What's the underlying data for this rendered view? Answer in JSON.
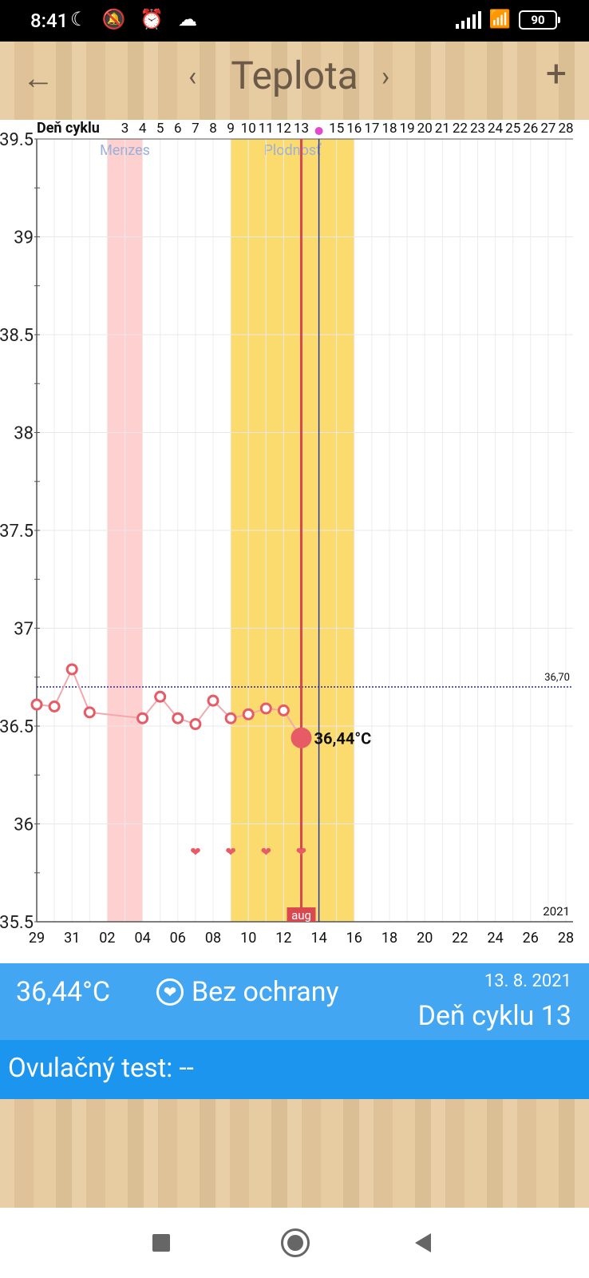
{
  "status": {
    "time": "8:41",
    "battery": "90"
  },
  "appbar": {
    "title": "Teplota",
    "back_icon": "←",
    "prev_icon": "‹",
    "next_icon": "›",
    "add_icon": "+"
  },
  "chart_data": {
    "type": "line",
    "header_label": "Deň cyklu",
    "cycle_days": [
      "3",
      "4",
      "5",
      "6",
      "7",
      "8",
      "9",
      "10",
      "11",
      "12",
      "13",
      "",
      "15",
      "16",
      "17",
      "18",
      "19",
      "20",
      "21",
      "22",
      "23",
      "24",
      "25",
      "26",
      "27",
      "28"
    ],
    "y_ticks": [
      "39.5",
      "39",
      "38.5",
      "38",
      "37.5",
      "37",
      "36.5",
      "36",
      "35.5"
    ],
    "ylim": [
      35.5,
      39.5
    ],
    "x_ticks": [
      "29",
      "31",
      "02",
      "04",
      "06",
      "08",
      "10",
      "12",
      "14",
      "16",
      "18",
      "20",
      "22",
      "24",
      "26",
      "28"
    ],
    "year": "2021",
    "month_label": "aug",
    "threshold": {
      "label": "36,70",
      "value": 36.7
    },
    "bands": [
      {
        "label": "Menzes",
        "from_day": 2,
        "to_day": 4,
        "color": "#ffd0d0"
      },
      {
        "label": "Plodnosť",
        "from_day": 9,
        "to_day": 16,
        "color": "#fbdb6e"
      }
    ],
    "temperatures": [
      {
        "day": 29,
        "value": 36.61
      },
      {
        "day": 30,
        "value": 36.6
      },
      {
        "day": 31,
        "value": 36.79
      },
      {
        "day": 32,
        "value": 36.57
      },
      {
        "day": 35,
        "value": 36.54
      },
      {
        "day": 36,
        "value": 36.65
      },
      {
        "day": 37,
        "value": 36.54
      },
      {
        "day": 38,
        "value": 36.51
      },
      {
        "day": 39,
        "value": 36.63
      },
      {
        "day": 40,
        "value": 36.54
      },
      {
        "day": 41,
        "value": 36.56
      },
      {
        "day": 42,
        "value": 36.59
      },
      {
        "day": 43,
        "value": 36.58
      },
      {
        "day": 44,
        "value": 36.44
      }
    ],
    "selected": {
      "day": 44,
      "label": "36,44°C"
    },
    "hearts_days": [
      38,
      40,
      42,
      44
    ],
    "today_day": 44,
    "ovulation_day": 45,
    "colors": {
      "temp": "#e65b66",
      "selected_line": "#d9474f",
      "ovulation_line": "#2437a8",
      "threshold": "#1f2aa0"
    }
  },
  "info": {
    "temp": "36,44°C",
    "protection": "Bez ochrany",
    "date": "13. 8. 2021",
    "cycle": "Deň cyklu 13",
    "ovulation_test": "Ovulačný test: --"
  }
}
